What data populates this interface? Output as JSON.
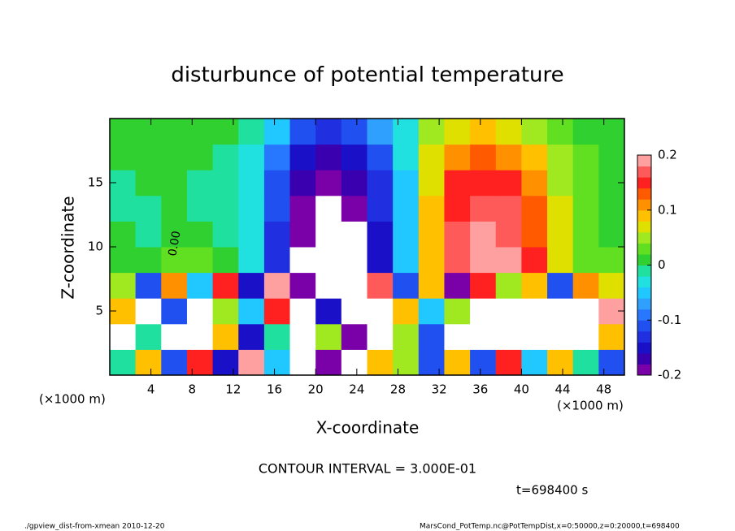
{
  "chart_data": {
    "type": "contour",
    "title": "disturbunce of potential temperature",
    "x_label": "X-coordinate",
    "y_label": "Z-coordinate",
    "x_unit_label": "(×1000 m)",
    "contour_interval": "CONTOUR INTERVAL = 3.000E-01",
    "time_label": "t=698400 s",
    "annotations": [
      "0.00"
    ],
    "footer_left": "./gpview_dist-from-xmean  2010-12-20",
    "footer_right": "MarsCond_PotTemp.nc@PotTempDist,x=0:50000,z=0:20000,t=698400",
    "xlim": [
      0,
      50
    ],
    "ylim": [
      0,
      20
    ],
    "xticks": [
      4,
      8,
      12,
      16,
      20,
      24,
      28,
      32,
      36,
      40,
      44,
      48
    ],
    "yticks": [
      5,
      10,
      15
    ],
    "x_edges": [
      0,
      2.5,
      5,
      7.5,
      10,
      12.5,
      15,
      17.5,
      20,
      22.5,
      25,
      27.5,
      30,
      32.5,
      35,
      37.5,
      40,
      42.5,
      45,
      47.5,
      50
    ],
    "z_edges": [
      0,
      2,
      4,
      6,
      8,
      10,
      12,
      14,
      16,
      18,
      20
    ],
    "values": [
      [
        0.0,
        0.1,
        -0.1,
        0.15,
        -0.15,
        0.2,
        -0.05,
        0.3,
        -0.2,
        0.3,
        0.1,
        0.05,
        -0.1,
        0.1,
        -0.1,
        0.15,
        -0.05,
        0.1,
        0.0,
        -0.1
      ],
      [
        0.3,
        0.0,
        0.25,
        0.3,
        0.1,
        -0.15,
        0.0,
        0.3,
        0.05,
        -0.2,
        0.3,
        0.05,
        -0.1,
        0.25,
        0.3,
        0.3,
        0.28,
        0.25,
        0.3,
        0.1
      ],
      [
        0.1,
        0.25,
        -0.1,
        0.25,
        0.05,
        -0.05,
        0.15,
        0.3,
        -0.15,
        0.25,
        0.3,
        0.1,
        -0.05,
        0.05,
        0.25,
        0.3,
        0.25,
        0.3,
        0.25,
        0.2
      ],
      [
        0.05,
        -0.1,
        0.12,
        -0.05,
        0.15,
        -0.15,
        0.2,
        -0.2,
        0.25,
        -0.25,
        0.18,
        -0.1,
        0.1,
        -0.2,
        0.15,
        0.05,
        0.1,
        -0.1,
        0.12,
        0.08
      ],
      [
        0.02,
        0.02,
        0.03,
        0.04,
        0.02,
        -0.02,
        -0.12,
        -0.23,
        -0.26,
        -0.24,
        -0.15,
        -0.05,
        0.1,
        0.17,
        0.2,
        0.19,
        0.15,
        0.08,
        0.04,
        0.03
      ],
      [
        0.01,
        0.0,
        0.01,
        0.01,
        0.0,
        -0.03,
        -0.12,
        -0.2,
        -0.24,
        -0.21,
        -0.14,
        -0.05,
        0.1,
        0.17,
        0.19,
        0.18,
        0.14,
        0.08,
        0.04,
        0.02
      ],
      [
        0.0,
        0.0,
        0.01,
        0.0,
        0.0,
        -0.03,
        -0.11,
        -0.19,
        -0.22,
        -0.19,
        -0.13,
        -0.05,
        0.09,
        0.16,
        0.18,
        0.17,
        0.13,
        0.07,
        0.04,
        0.02
      ],
      [
        0.0,
        0.01,
        0.01,
        0.0,
        0.0,
        -0.03,
        -0.1,
        -0.17,
        -0.19,
        -0.17,
        -0.12,
        -0.04,
        0.08,
        0.15,
        0.16,
        0.15,
        0.11,
        0.06,
        0.04,
        0.02
      ],
      [
        0.01,
        0.01,
        0.01,
        0.01,
        0.0,
        -0.02,
        -0.08,
        -0.15,
        -0.17,
        -0.15,
        -0.1,
        -0.03,
        0.07,
        0.12,
        0.13,
        0.12,
        0.09,
        0.05,
        0.03,
        0.02
      ],
      [
        0.01,
        0.01,
        0.01,
        0.01,
        0.01,
        0.0,
        -0.04,
        -0.1,
        -0.12,
        -0.1,
        -0.06,
        -0.02,
        0.05,
        0.08,
        0.09,
        0.08,
        0.06,
        0.04,
        0.02,
        0.01
      ]
    ],
    "colorbar": {
      "levels": [
        -0.2,
        -0.18,
        -0.16,
        -0.14,
        -0.12,
        -0.1,
        -0.08,
        -0.06,
        -0.04,
        -0.02,
        0,
        0.02,
        0.04,
        0.06,
        0.08,
        0.1,
        0.12,
        0.14,
        0.16,
        0.18,
        0.2
      ],
      "colors": [
        "#7a00a8",
        "#3a00b0",
        "#1a10c8",
        "#2030e0",
        "#2050f0",
        "#2878ff",
        "#30a0ff",
        "#20c8ff",
        "#20e0e0",
        "#20e0a0",
        "#30d030",
        "#60e020",
        "#a0e820",
        "#e0e000",
        "#ffc000",
        "#ff9000",
        "#ff5a00",
        "#ff2020",
        "#ff5a5a",
        "#ffa0a0"
      ],
      "ticks": [
        -0.2,
        -0.1,
        0,
        0.1,
        0.2
      ]
    }
  }
}
